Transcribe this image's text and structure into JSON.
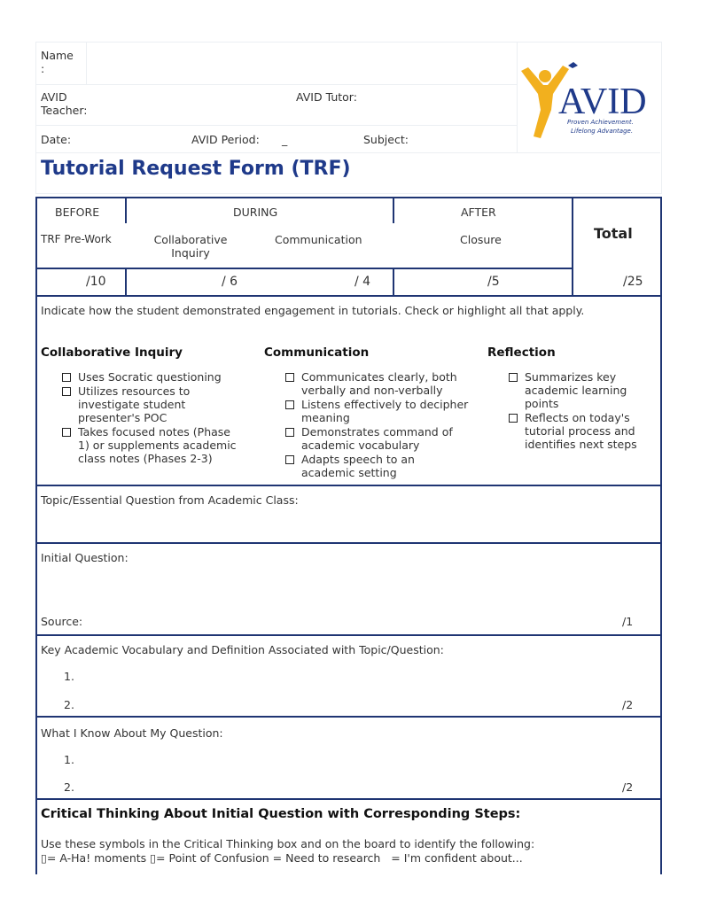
{
  "header": {
    "name_label": "Name\n:",
    "teacher_label": "AVID\nTeacher:",
    "tutor_label": "AVID Tutor:",
    "date_label": "Date:",
    "period_label": "AVID Period:",
    "period_value": "_",
    "subject_label": "Subject:"
  },
  "logo": {
    "text": "AVID",
    "tagline": "Proven Achievement. Lifelong Advantage.",
    "colors": {
      "figure": "#f2b01e",
      "text": "#1f3a8f"
    }
  },
  "title": "Tutorial Request Form (TRF)",
  "score_table": {
    "phases": [
      "BEFORE",
      "DURING",
      "AFTER"
    ],
    "columns": [
      "TRF Pre-Work",
      "Collaborative Inquiry",
      "Communication",
      "Closure"
    ],
    "total_label": "Total",
    "scores": [
      "/10",
      "/ 6",
      "/ 4",
      "/5",
      "/25"
    ]
  },
  "engagement": {
    "instructions": "Indicate how the student demonstrated engagement in tutorials. Check or highlight all that apply.",
    "groups": [
      {
        "heading": "Collaborative Inquiry",
        "items": [
          "Uses Socratic questioning",
          "Utilizes resources to investigate student presenter's POC",
          "Takes focused notes (Phase 1) or supplements academic class notes (Phases 2-3)"
        ]
      },
      {
        "heading": "Communication",
        "items": [
          "Communicates clearly, both verbally and non-verbally",
          "Listens effectively to decipher meaning",
          "Demonstrates command of academic vocabulary",
          "Adapts speech to an academic setting"
        ]
      },
      {
        "heading": "Reflection",
        "items": [
          "Summarizes key academic learning points",
          "Reflects on today's tutorial process and identifies next steps"
        ]
      }
    ]
  },
  "topic": {
    "label": "Topic/Essential Question from Academic Class:"
  },
  "initial": {
    "label": "Initial Question:",
    "source_label": "Source:",
    "score": "/1"
  },
  "vocab": {
    "label": "Key Academic Vocabulary and Definition Associated with Topic/Question:",
    "items": [
      "1.",
      "2."
    ],
    "score": "/2"
  },
  "know": {
    "label": "What I Know About My Question:",
    "items": [
      "1.",
      "2."
    ],
    "score": "/2"
  },
  "critical": {
    "heading": "Critical Thinking About Initial Question with Corresponding Steps:",
    "line1": "Use these symbols in the Critical Thinking box and on the board to identify the following:",
    "line2": "▯= A-Ha! moments ▯= Point of Confusion = Need to research   = I'm confident about..."
  },
  "colors": {
    "border": "#1f3573",
    "title": "#1f3a8a"
  }
}
